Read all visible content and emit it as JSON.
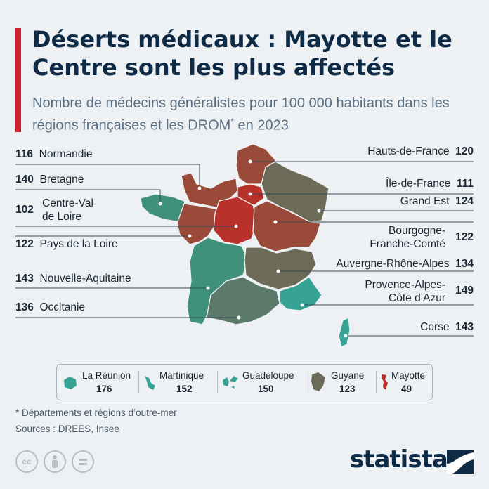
{
  "title": "Déserts médicaux : Mayotte et le Centre sont les plus affectés",
  "subtitle": "Nombre de médecins généralistes pour 100 000 habitants dans les régions françaises et les DROM",
  "subtitle_star": "*",
  "subtitle_year": " en 2023",
  "colors": {
    "dark_red": "#b8322b",
    "brown_red": "#9a4a39",
    "olive": "#6b6b57",
    "slate_green": "#5b7a6a",
    "teal": "#3f917a",
    "light_teal": "#36a394",
    "accent_red": "#d0212b",
    "title_navy": "#0f2a44"
  },
  "regions_left": [
    {
      "value": "116",
      "name": "Normandie"
    },
    {
      "value": "140",
      "name": "Bretagne"
    },
    {
      "value": "102",
      "name": "Centre-Val",
      "name2": "de Loire"
    },
    {
      "value": "122",
      "name": "Pays de la Loire"
    },
    {
      "value": "143",
      "name": "Nouvelle-Aquitaine"
    },
    {
      "value": "136",
      "name": "Occitanie"
    }
  ],
  "regions_right": [
    {
      "value": "120",
      "name": "Hauts-de-France"
    },
    {
      "value": "111",
      "name": "Île-de-France"
    },
    {
      "value": "124",
      "name": "Grand Est"
    },
    {
      "value": "122",
      "name": "Bourgogne-",
      "name2": "Franche-Comté"
    },
    {
      "value": "134",
      "name": "Auvergne-Rhône-Alpes"
    },
    {
      "value": "149",
      "name": "Provence-Alpes-",
      "name2": "Côte d’Azur"
    },
    {
      "value": "143",
      "name": "Corse"
    }
  ],
  "drom": [
    {
      "name": "La Réunion",
      "value": "176",
      "icon": "la-reunion-shape-icon"
    },
    {
      "name": "Martinique",
      "value": "152",
      "icon": "martinique-shape-icon"
    },
    {
      "name": "Guadeloupe",
      "value": "150",
      "icon": "guadeloupe-shape-icon"
    },
    {
      "name": "Guyane",
      "value": "123",
      "icon": "guyane-shape-icon"
    },
    {
      "name": "Mayotte",
      "value": "49",
      "icon": "mayotte-shape-icon"
    }
  ],
  "footnote": "* Départements et régions d’outre-mer",
  "source": "Sources : DREES, Insee",
  "license_icons": [
    "cc-icon",
    "attribution-icon",
    "no-derivatives-icon"
  ],
  "cc_label": "cc",
  "brand": "statista"
}
